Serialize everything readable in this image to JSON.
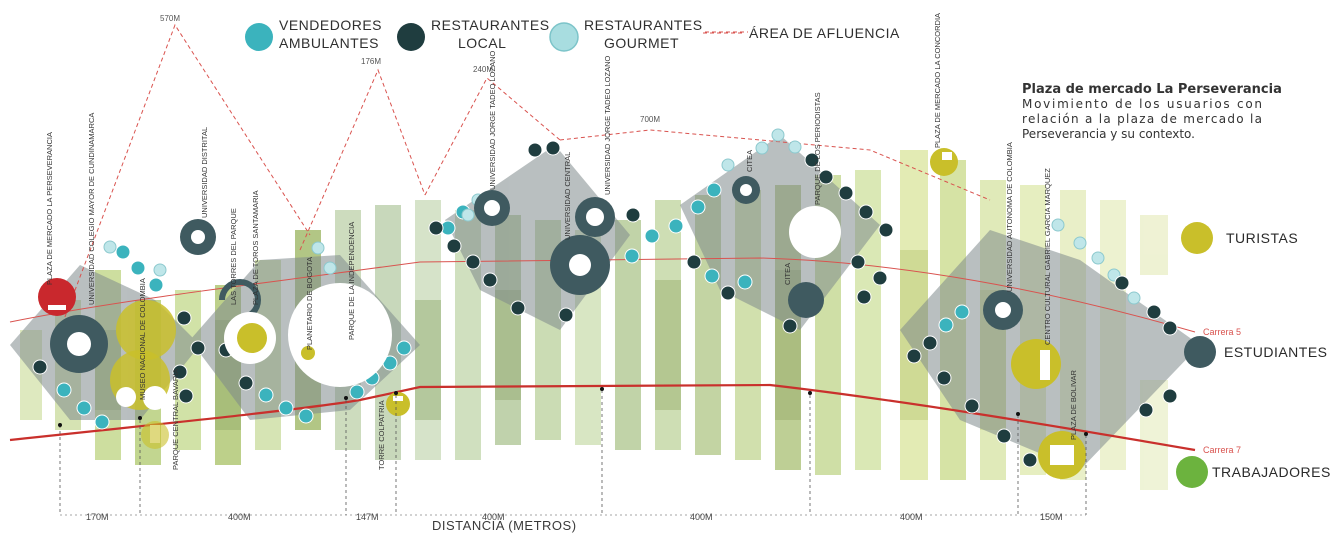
{
  "legend": {
    "vendedores": "VENDEDORES AMBULANTES",
    "vendedores_l1": "VENDEDORES",
    "vendedores_l2": "AMBULANTES",
    "restaurantes_local_l1": "RESTAURANTES",
    "restaurantes_local_l2": "LOCAL",
    "restaurantes_gourmet_l1": "RESTAURANTES",
    "restaurantes_gourmet_l2": "GOURMET",
    "area": "ÁREA DE AFLUENCIA"
  },
  "info": {
    "title": "Plaza de mercado La Perseverancia",
    "line1": "Movimiento de los usuarios con",
    "line2": "relación a la plaza de mercado la",
    "line3": "Perseverancia y su contexto."
  },
  "groups": {
    "turistas": "TURISTAS",
    "estudiantes": "ESTUDIANTES",
    "trabajadores": "TRABAJADORES"
  },
  "roads": {
    "carrera5": "Carrera 5",
    "carrera7": "Carrera 7"
  },
  "axis": {
    "label": "DISTANCIA (METROS)",
    "segments": [
      "170M",
      "400M",
      "147M",
      "400M",
      "400M",
      "400M",
      "150M"
    ]
  },
  "peaks": [
    "570M",
    "176M",
    "240M",
    "700M"
  ],
  "places": {
    "p1": "PLAZA DE MERCADO LA PERSEVERANCIA",
    "p2": "UNIVERSIDAD COLEGIO MAYOR DE CUNDINAMARCA",
    "p3": "UNIVERSIDAD DISTRITAL",
    "p4": "MUSEO NACIONAL DE COLOMBIA",
    "p5": "PARQUE CENTRAL BAVARIA",
    "p6": "LAS TORRES DEL PARQUE",
    "p7": "PLAZA DE TOROS SANTAMARIA",
    "p8": "PLANETARIO DE BOGOTA",
    "p9": "PARQUE DE LA INDEPENDENCIA",
    "p10": "TORRE COLPATRIA",
    "p11": "UNIVERSIDAD JORGE TADEO LOZANO",
    "p12": "UNIVERSIDAD CENTRAL",
    "p13": "UNIVERSIDAD JORGE TADEO LOZANO",
    "p14": "CITEA",
    "p15": "PARQUE DE LOS PERIODISTAS",
    "p16": "CITEA",
    "p17": "PLAZA DE MERCADO LA CONCORDIA",
    "p18": "UNIVERSIDAD AUTONOMA DE COLOMBIA",
    "p19": "CENTRO CULTURAL GABRIEL GARCIA MARQUEZ",
    "p20": "PLAZA DE BOLIVAR"
  },
  "colors": {
    "vendedores": "#3bb3bd",
    "local": "#1f3d3f",
    "gourmet": "#a8dde0",
    "afluencia": "#d9534f",
    "turistas": "#c9bf2a",
    "estudiantes": "#3f5a60",
    "trabajadores": "#6cb33e"
  }
}
